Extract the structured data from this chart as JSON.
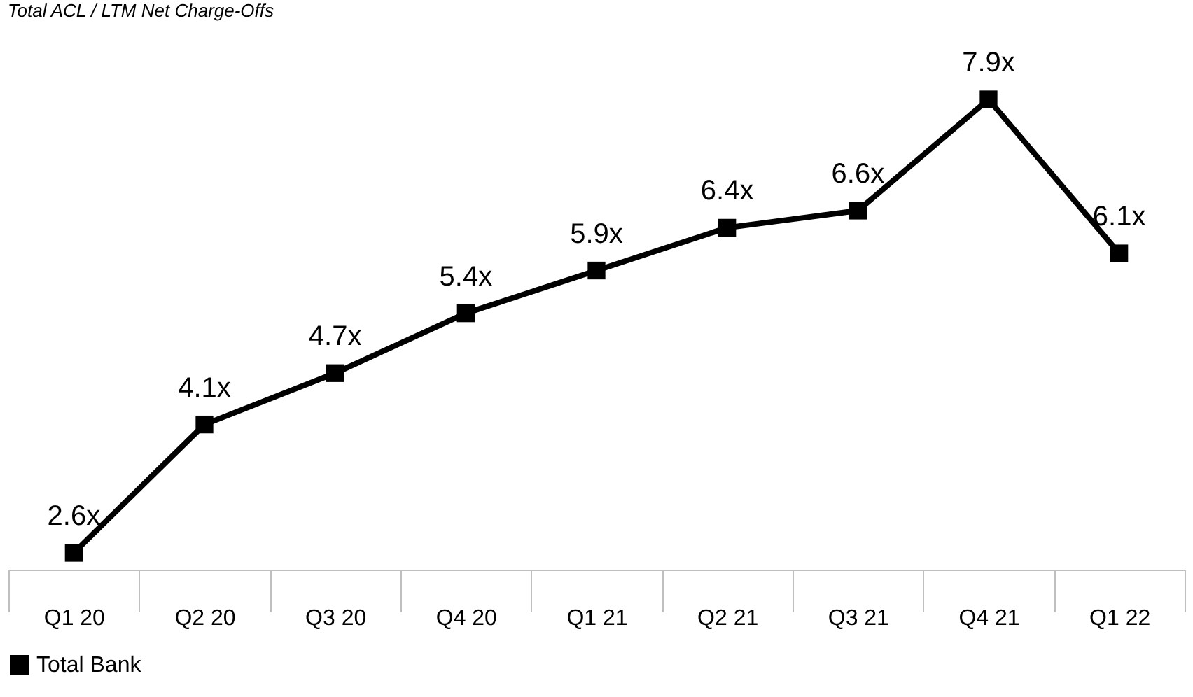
{
  "chart_data": {
    "type": "line",
    "title": "Total ACL / LTM Net Charge-Offs",
    "categories": [
      "Q1 20",
      "Q2 20",
      "Q3 20",
      "Q4 20",
      "Q1 21",
      "Q2 21",
      "Q3 21",
      "Q4 21",
      "Q1 22"
    ],
    "series": [
      {
        "name": "Total Bank",
        "color": "#000000",
        "values": [
          2.6,
          4.1,
          4.7,
          5.4,
          5.9,
          6.4,
          6.6,
          7.9,
          6.1
        ],
        "value_labels": [
          "2.6x",
          "4.1x",
          "4.7x",
          "5.4x",
          "5.9x",
          "6.4x",
          "6.6x",
          "7.9x",
          "6.1x"
        ]
      }
    ],
    "marker": "square",
    "legend": "bottom",
    "grid": false
  }
}
